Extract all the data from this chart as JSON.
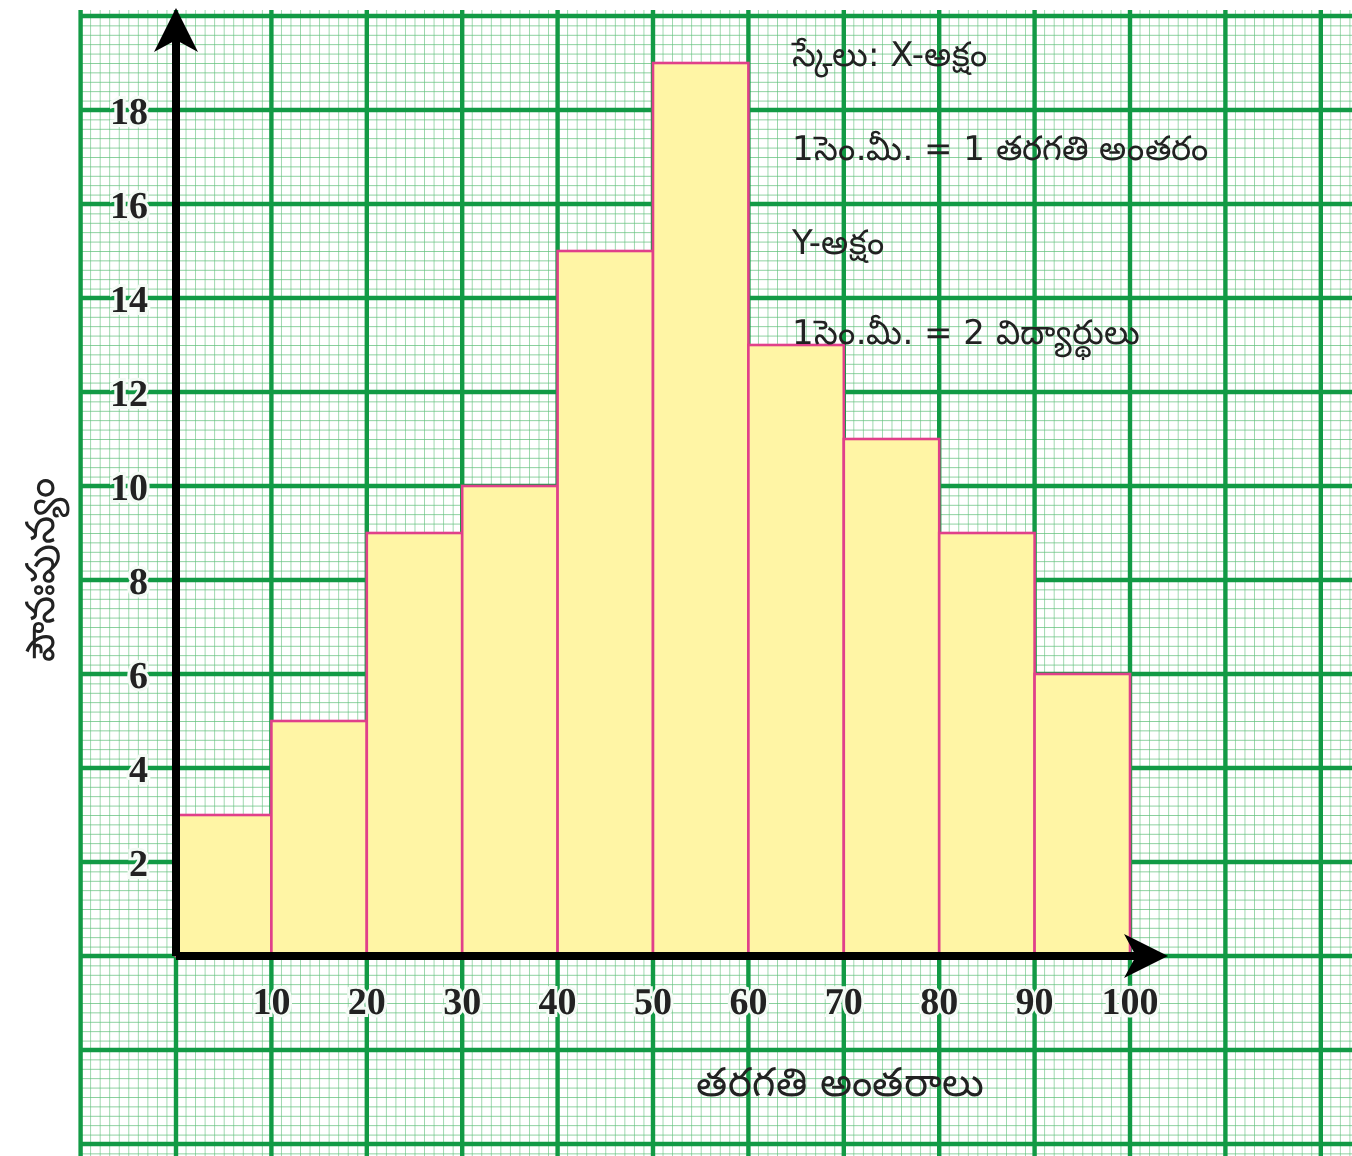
{
  "chart_data": {
    "type": "histogram",
    "xlabel": "తరగతి అంతరాలు",
    "ylabel": "పౌనఃపున్యం",
    "bins": [
      0,
      10,
      20,
      30,
      40,
      50,
      60,
      70,
      80,
      90,
      100
    ],
    "values": [
      3,
      5,
      9,
      10,
      15,
      19,
      13,
      11,
      9,
      6
    ],
    "color": "#fff5a5",
    "xlim": [
      0,
      100
    ],
    "ylim": [
      0,
      20
    ],
    "xticks": [
      10,
      20,
      30,
      40,
      50,
      60,
      70,
      80,
      90,
      100
    ],
    "yticks": [
      2,
      4,
      6,
      8,
      10,
      12,
      14,
      16,
      18
    ],
    "grid": true,
    "annotations": [
      "స్కేలు: X-అక్షం",
      "1సెం.మీ. = 1 తరగతి అంతరం",
      "Y-అక్షం",
      "1సెం.మీ. = 2 విద్యార్థులు"
    ]
  }
}
